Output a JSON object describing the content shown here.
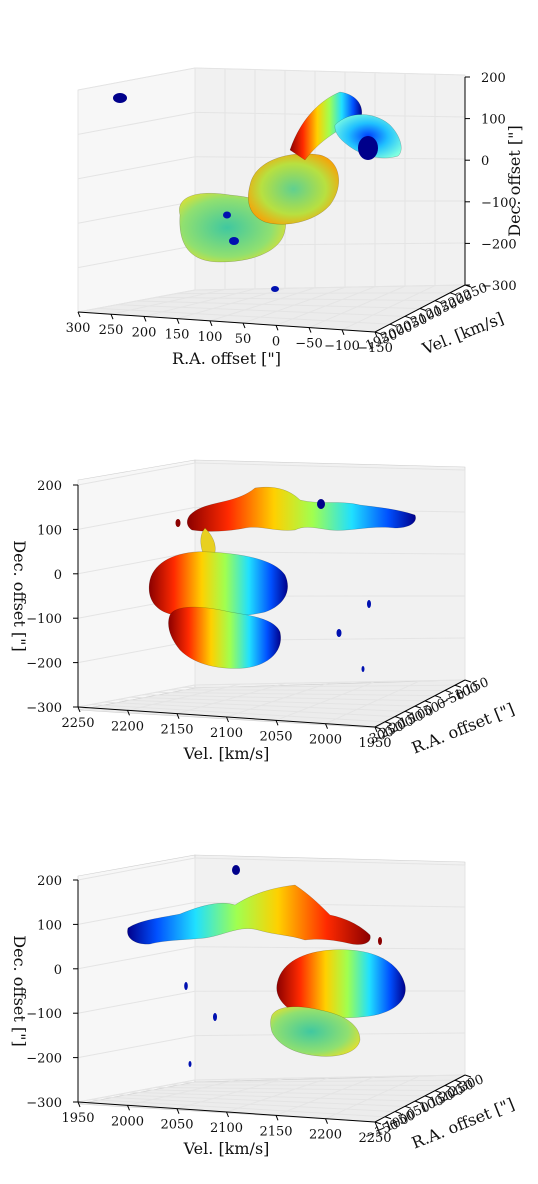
{
  "chart_data": [
    {
      "type": "3d-isosurface",
      "view": "ra-front",
      "xlabel": "R.A. offset [\"]",
      "ylabel": "Vel. [km/s]",
      "zlabel": "Dec. offset [\"]",
      "xticks": [
        "300",
        "250",
        "200",
        "150",
        "100",
        "50",
        "0",
        "−50",
        "−100",
        "−150"
      ],
      "yticks": [
        "1950",
        "2000",
        "2050",
        "2100",
        "2150",
        "2200",
        "2250"
      ],
      "zticks": [
        "200",
        "100",
        "0",
        "−100",
        "−200",
        "−300"
      ],
      "xlim": [
        300,
        -150
      ],
      "ylim": [
        1950,
        2250
      ],
      "zlim": [
        -300,
        200
      ],
      "colormap": "jet",
      "color_encodes": "Vel. [km/s]",
      "grid": true
    },
    {
      "type": "3d-isosurface",
      "view": "vel-front",
      "xlabel": "Vel. [km/s]",
      "ylabel": "R.A. offset [\"]",
      "zlabel": "Dec. offset [\"]",
      "xticks": [
        "2250",
        "2200",
        "2150",
        "2100",
        "2050",
        "2000",
        "1950"
      ],
      "yticks": [
        "300",
        "250",
        "200",
        "150",
        "100",
        "50",
        "0",
        "−50",
        "−100",
        "−150"
      ],
      "zticks": [
        "200",
        "100",
        "0",
        "−100",
        "−200",
        "−300"
      ],
      "xlim": [
        2250,
        1950
      ],
      "ylim": [
        300,
        -150
      ],
      "zlim": [
        -300,
        200
      ],
      "colormap": "jet",
      "color_encodes": "Vel. [km/s]",
      "grid": true
    },
    {
      "type": "3d-isosurface",
      "view": "vel-back",
      "xlabel": "Vel. [km/s]",
      "ylabel": "R.A. offset [\"]",
      "zlabel": "Dec. offset [\"]",
      "xticks": [
        "1950",
        "2000",
        "2050",
        "2100",
        "2150",
        "2200",
        "2250"
      ],
      "yticks": [
        "−150",
        "−100",
        "−50",
        "0",
        "50",
        "100",
        "150",
        "200",
        "250",
        "300"
      ],
      "zticks": [
        "200",
        "100",
        "0",
        "−100",
        "−200",
        "−300"
      ],
      "xlim": [
        1950,
        2250
      ],
      "ylim": [
        -150,
        300
      ],
      "zlim": [
        -300,
        200
      ],
      "colormap": "jet",
      "color_encodes": "Vel. [km/s]",
      "grid": true
    }
  ],
  "colors": {
    "low_vel": "#00008b",
    "mid_vel": "#40e0a0",
    "high_vel": "#8b0000",
    "pane": "#f2f2f2"
  }
}
